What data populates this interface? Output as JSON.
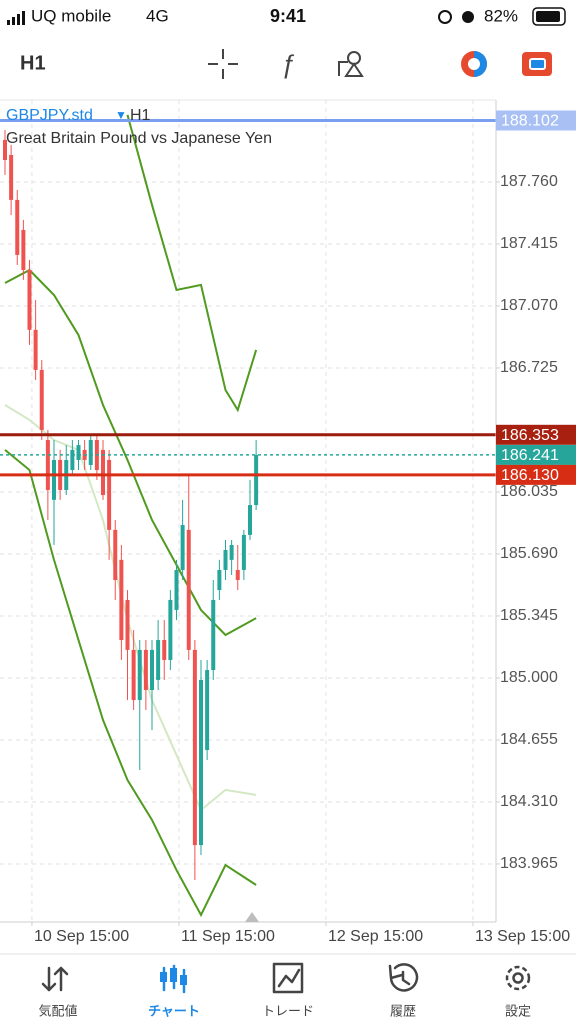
{
  "status_bar": {
    "carrier": "UQ mobile",
    "network": "4G",
    "time": "9:41",
    "battery": "82%"
  },
  "toolbar": {
    "timeframe": "H1"
  },
  "chart_data": {
    "type": "candlestick",
    "symbol": "GBPJPY.std",
    "timeframe": "H1",
    "description": "Great Britain Pound vs Japanese Yen",
    "up_color": "#26a69a",
    "down_color": "#ef5350",
    "candles": {
      "x": [
        0,
        1,
        2,
        3,
        4,
        5,
        6,
        7,
        8,
        9,
        10,
        11,
        12,
        13,
        14,
        15,
        16,
        17,
        18,
        19,
        20,
        21,
        22,
        23,
        24,
        25,
        26,
        27,
        28,
        29,
        30,
        31,
        32,
        33,
        34,
        35,
        36,
        37,
        38,
        39,
        40,
        41
      ],
      "open": [
        187.994,
        187.91,
        187.66,
        187.493,
        187.27,
        186.937,
        186.714,
        186.324,
        185.991,
        186.213,
        186.046,
        186.157,
        186.213,
        186.269,
        186.185,
        186.324,
        186.269,
        186.213,
        185.824,
        185.657,
        185.434,
        185.156,
        184.877,
        185.156,
        184.933,
        184.989,
        185.211,
        185.1,
        185.378,
        185.601,
        185.824,
        185.156,
        184.07,
        184.599,
        185.044,
        185.489,
        185.601,
        185.657,
        185.601,
        185.601,
        185.796,
        185.962
      ],
      "high": [
        188.049,
        187.966,
        187.715,
        187.549,
        187.326,
        187.103,
        186.769,
        186.38,
        186.324,
        186.269,
        186.296,
        186.324,
        186.324,
        186.324,
        186.352,
        186.352,
        186.324,
        186.269,
        185.879,
        185.74,
        185.489,
        185.267,
        185.211,
        185.211,
        185.211,
        185.322,
        185.322,
        185.489,
        185.657,
        185.991,
        186.13,
        185.211,
        185.1,
        185.1,
        185.545,
        185.657,
        185.768,
        185.768,
        185.74,
        185.824,
        186.102,
        186.324
      ],
      "low": [
        187.799,
        187.576,
        187.298,
        187.215,
        186.853,
        186.658,
        186.324,
        185.879,
        185.74,
        185.991,
        186.018,
        186.13,
        186.157,
        186.157,
        186.157,
        186.102,
        185.991,
        185.657,
        185.434,
        185.1,
        184.877,
        184.822,
        184.488,
        184.822,
        184.71,
        184.933,
        184.989,
        185.044,
        185.322,
        185.545,
        185.1,
        183.876,
        184.015,
        184.543,
        184.989,
        185.434,
        185.545,
        185.573,
        185.489,
        185.545,
        185.768,
        185.935
      ],
      "close": [
        187.882,
        187.66,
        187.354,
        187.27,
        186.937,
        186.714,
        186.38,
        186.046,
        186.213,
        186.046,
        186.213,
        186.269,
        186.296,
        186.213,
        186.324,
        186.157,
        186.018,
        185.824,
        185.545,
        185.211,
        185.156,
        184.877,
        185.156,
        184.933,
        185.156,
        185.211,
        185.1,
        185.434,
        185.601,
        185.851,
        185.156,
        184.07,
        184.989,
        185.044,
        185.434,
        185.601,
        185.712,
        185.74,
        185.545,
        185.796,
        185.962,
        186.241
      ]
    },
    "lines": [
      {
        "color": "#4f9a1f",
        "x": [
          20,
          24,
          28,
          32,
          36,
          38,
          41
        ],
        "values": [
          188.133,
          187.632,
          187.159,
          187.187,
          186.602,
          186.491,
          186.825
        ]
      },
      {
        "color": "#4f9a1f",
        "x": [
          0,
          4,
          8,
          12,
          16,
          20,
          24,
          28,
          32,
          36,
          41
        ],
        "values": [
          187.198,
          187.27,
          187.131,
          186.908,
          186.519,
          186.213,
          185.879,
          185.629,
          185.378,
          185.239,
          185.333
        ]
      },
      {
        "color": "#4f9a1f",
        "x": [
          0,
          4,
          8,
          12,
          16,
          20,
          24,
          28,
          32,
          36,
          41
        ],
        "values": [
          186.269,
          186.157,
          185.657,
          185.211,
          184.766,
          184.432,
          184.21,
          183.931,
          183.681,
          183.959,
          183.848
        ]
      },
      {
        "color": "#d3e8c4",
        "x": [
          0,
          4,
          8,
          12,
          16,
          20,
          24,
          28,
          32,
          36,
          41
        ],
        "values": [
          186.519,
          186.436,
          186.324,
          186.269,
          185.879,
          185.322,
          184.877,
          184.571,
          184.265,
          184.377,
          184.349
        ]
      }
    ],
    "price_lines": [
      {
        "value": 188.102,
        "color": "#7b9ff0",
        "label_color": "#a9c0f5",
        "dashed": false
      },
      {
        "value": 186.353,
        "color": "#9b1c0c",
        "label_color": "#a8200f",
        "dashed": false
      },
      {
        "value": 186.241,
        "color": "#26a69a",
        "label_color": "#26a69a",
        "dashed": true
      },
      {
        "value": {
          "value": 186.13,
          "label": "186.130"
        },
        "color": "#d62d14",
        "label_color": "#d62d14",
        "dashed": false
      }
    ],
    "xlim": [
      -0.816,
      80.163
    ],
    "xticks": [
      {
        "value": 4.4,
        "label": "10 Sep 15:00"
      },
      {
        "value": 28.4,
        "label": "11 Sep 15:00"
      },
      {
        "value": 52.4,
        "label": "12 Sep 15:00"
      },
      {
        "value": 76.4,
        "label": "13 Sep 15:00"
      }
    ],
    "ylim": [
      183.642,
      188.216
    ],
    "yticks": [
      {
        "value": 187.76,
        "label": "187.760"
      },
      187.415,
      {
        "value": 187.07,
        "label": "187.070"
      },
      186.725,
      186.035,
      {
        "value": 185.69,
        "label": "185.690"
      },
      185.345,
      {
        "value": 185,
        "label": "185.000"
      },
      184.655,
      {
        "value": 184.31,
        "label": "184.310"
      },
      183.965
    ],
    "grid": true
  },
  "tab_bar": {
    "active": 1,
    "items": [
      {
        "label": "気配値"
      },
      {
        "label": "チャート"
      },
      {
        "label": "トレード"
      },
      {
        "label": "履歴"
      },
      {
        "label": "設定"
      }
    ]
  }
}
